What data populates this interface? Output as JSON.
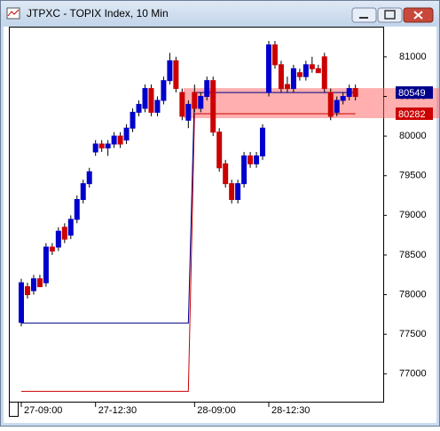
{
  "chart_data": {
    "type": "candlestick",
    "title": "JTPXC - TOPIX Index, 10 Min",
    "categories": [
      "27-09:00",
      null,
      null,
      null,
      null,
      null,
      null,
      null,
      null,
      null,
      null,
      null,
      "27-12:30",
      null,
      null,
      null,
      null,
      null,
      null,
      null,
      null,
      null,
      null,
      null,
      null,
      null,
      null,
      null,
      "28-09:00",
      null,
      null,
      null,
      null,
      null,
      null,
      null,
      null,
      null,
      null,
      null,
      "28-12:30",
      null,
      null,
      null,
      null,
      null,
      null,
      null,
      null,
      null,
      null,
      null,
      null,
      null,
      null
    ],
    "open": [
      77650,
      78100,
      78050,
      78200,
      78150,
      78600,
      78600,
      78850,
      78750,
      78950,
      79200,
      79400,
      79800,
      79900,
      79850,
      79900,
      80000,
      79950,
      80100,
      80300,
      80350,
      80600,
      80300,
      80450,
      80700,
      80950,
      80550,
      80200,
      80550,
      80350,
      80500,
      80700,
      80050,
      79650,
      79400,
      79200,
      79400,
      79750,
      79650,
      79750,
      80550,
      81150,
      80900,
      80650,
      80600,
      80800,
      80750,
      80900,
      80850,
      81000,
      80550,
      80300,
      80450,
      80500,
      80600
    ],
    "high": [
      78200,
      78150,
      78250,
      78250,
      78650,
      78650,
      78850,
      78900,
      79000,
      79250,
      79450,
      79600,
      79950,
      79950,
      79950,
      80050,
      80050,
      80150,
      80350,
      80450,
      80650,
      80650,
      80500,
      80750,
      81050,
      81000,
      80600,
      80450,
      80650,
      80550,
      80750,
      80750,
      80100,
      79700,
      79450,
      79450,
      79800,
      79800,
      79800,
      80150,
      81200,
      81200,
      80950,
      80750,
      80900,
      80850,
      80950,
      81000,
      80900,
      81050,
      80600,
      80500,
      80550,
      80650,
      80650
    ],
    "low": [
      77600,
      77950,
      78000,
      78100,
      78100,
      78500,
      78550,
      78650,
      78700,
      78900,
      79150,
      79350,
      79750,
      79800,
      79750,
      79850,
      79850,
      79900,
      80050,
      80250,
      80300,
      80250,
      80250,
      80400,
      80650,
      80550,
      80200,
      80100,
      80300,
      80300,
      80450,
      80000,
      79550,
      79350,
      79150,
      79150,
      79350,
      79600,
      79600,
      79700,
      80500,
      80850,
      80550,
      80550,
      80550,
      80700,
      80700,
      80800,
      80800,
      80550,
      80200,
      80250,
      80400,
      80450,
      80450
    ],
    "close": [
      78150,
      78000,
      78200,
      78100,
      78600,
      78550,
      78800,
      78700,
      78950,
      79200,
      79400,
      79550,
      79900,
      79850,
      79900,
      80000,
      79900,
      80100,
      80300,
      80400,
      80600,
      80300,
      80450,
      80700,
      80950,
      80600,
      80250,
      80400,
      80350,
      80500,
      80700,
      80050,
      79600,
      79400,
      79200,
      79400,
      79750,
      79650,
      79750,
      80100,
      81150,
      80900,
      80600,
      80600,
      80850,
      80750,
      80900,
      80850,
      80800,
      80600,
      80250,
      80450,
      80500,
      80600,
      80500
    ],
    "up_color": "#0000cc",
    "down_color": "#cc0000",
    "series": [
      {
        "color": "#cc0000",
        "values": [
          76780,
          76780,
          76780,
          76780,
          76780,
          76780,
          76780,
          76780,
          76780,
          76780,
          76780,
          76780,
          76780,
          76780,
          76780,
          76780,
          76780,
          76780,
          76780,
          76780,
          76780,
          76780,
          76780,
          76780,
          76780,
          76780,
          76780,
          76780,
          80282,
          80282,
          80282,
          80282,
          80282,
          80282,
          80282,
          80282,
          80282,
          80282,
          80282,
          80282,
          80282,
          80282,
          80282,
          80282,
          80282,
          80282,
          80282,
          80282,
          80282,
          80282,
          80282,
          80282,
          80282,
          80282,
          80282
        ]
      },
      {
        "color": "#00008b",
        "values": [
          77640,
          77640,
          77640,
          77640,
          77640,
          77640,
          77640,
          77640,
          77640,
          77640,
          77640,
          77640,
          77640,
          77640,
          77640,
          77640,
          77640,
          77640,
          77640,
          77640,
          77640,
          77640,
          77640,
          77640,
          77640,
          77640,
          77640,
          77640,
          80549,
          80549,
          80549,
          80549,
          80549,
          80549,
          80549,
          80549,
          80549,
          80549,
          80549,
          80549,
          80549,
          80549,
          80549,
          80549,
          80549,
          80549,
          80549,
          80549,
          80549,
          80549,
          80549,
          80549,
          80549,
          80549,
          80549
        ]
      }
    ],
    "ylim": [
      76650,
      81380
    ],
    "yticks": [
      77000,
      77500,
      78000,
      78500,
      79000,
      79500,
      80000,
      80500,
      81000
    ]
  }
}
